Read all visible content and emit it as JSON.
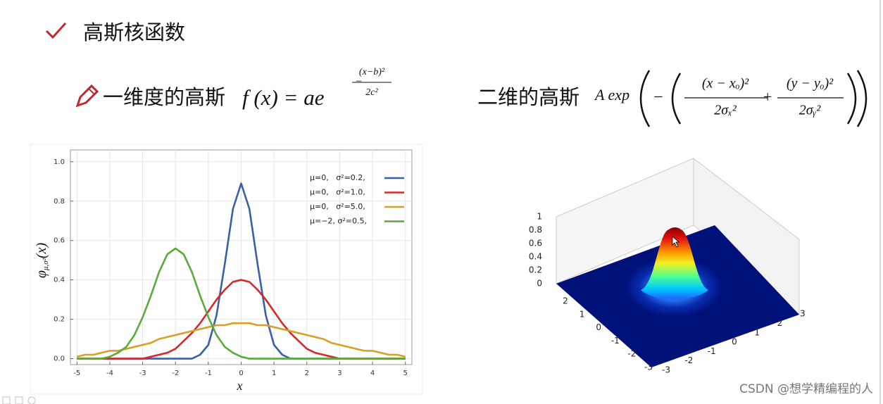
{
  "header": {
    "title": "高斯核函数"
  },
  "formula_1d": {
    "label": "一维度的高斯",
    "lhs": "f (x) = ae",
    "exp_sign": "−",
    "exp_num": "(x−b)²",
    "exp_den": "2c²"
  },
  "formula_2d": {
    "label": "二维的高斯",
    "lead": "A exp",
    "sign": "−",
    "num_1": "(x − xₒ)²",
    "den_1": "2σₓ²",
    "plus": "+",
    "num_2": "(y − yₒ)²",
    "den_2": "2σᵧ²"
  },
  "chart_data": {
    "type": "line",
    "xlabel": "x",
    "ylabel": {
      "symbol": "φ",
      "subscript": "μ,σ²",
      "argument": "(x)"
    },
    "x": [
      -5,
      -4.75,
      -4.5,
      -4.25,
      -4,
      -3.75,
      -3.5,
      -3.25,
      -3,
      -2.75,
      -2.5,
      -2.25,
      -2,
      -1.75,
      -1.5,
      -1.25,
      -1,
      -0.75,
      -0.5,
      -0.25,
      0,
      0.25,
      0.5,
      0.75,
      1,
      1.25,
      1.5,
      1.75,
      2,
      2.25,
      2.5,
      2.75,
      3,
      3.25,
      3.5,
      3.75,
      4,
      4.25,
      4.5,
      4.75,
      5
    ],
    "xlim": [
      -5.2,
      5.2
    ],
    "xticks": [
      -5,
      -4,
      -3,
      -2,
      -1,
      0,
      1,
      2,
      3,
      4,
      5
    ],
    "ylim": [
      -0.03,
      1.06
    ],
    "yticks": [
      {
        "value": 0,
        "label": "0.0"
      },
      0.2,
      0.4,
      0.6,
      0.8,
      {
        "value": 1,
        "label": "1.0"
      }
    ],
    "grid": true,
    "legend": "upper right",
    "series": [
      {
        "name": "μ=0,   σ²=0.2,",
        "color": "#3b5ea8",
        "values": [
          0,
          0,
          0,
          0,
          0,
          0,
          0,
          0,
          0,
          0,
          0,
          0,
          0,
          0,
          0,
          0.02,
          0.07,
          0.22,
          0.48,
          0.76,
          0.89,
          0.76,
          0.48,
          0.22,
          0.07,
          0.02,
          0,
          0,
          0,
          0,
          0,
          0,
          0,
          0,
          0,
          0,
          0,
          0,
          0,
          0,
          0
        ]
      },
      {
        "name": "μ=0,   σ²=1.0,",
        "color": "#d42a2a",
        "values": [
          0,
          0,
          0,
          0,
          0,
          0,
          0,
          0,
          0,
          0.01,
          0.02,
          0.03,
          0.05,
          0.09,
          0.13,
          0.18,
          0.24,
          0.3,
          0.35,
          0.39,
          0.4,
          0.39,
          0.35,
          0.3,
          0.24,
          0.18,
          0.13,
          0.09,
          0.05,
          0.03,
          0.02,
          0.01,
          0,
          0,
          0,
          0,
          0,
          0,
          0,
          0,
          0
        ]
      },
      {
        "name": "μ=0,   σ²=5.0,",
        "color": "#d9a028",
        "values": [
          0.01,
          0.02,
          0.02,
          0.03,
          0.04,
          0.04,
          0.05,
          0.06,
          0.07,
          0.08,
          0.1,
          0.11,
          0.12,
          0.13,
          0.14,
          0.15,
          0.16,
          0.17,
          0.17,
          0.18,
          0.18,
          0.18,
          0.17,
          0.17,
          0.16,
          0.15,
          0.14,
          0.13,
          0.12,
          0.11,
          0.1,
          0.08,
          0.07,
          0.06,
          0.05,
          0.04,
          0.04,
          0.03,
          0.02,
          0.02,
          0.01
        ]
      },
      {
        "name": "μ=−2, σ²=0.5,",
        "color": "#5aab3a",
        "values": [
          0,
          0,
          0,
          0,
          0.01,
          0.03,
          0.06,
          0.12,
          0.21,
          0.32,
          0.44,
          0.53,
          0.56,
          0.53,
          0.44,
          0.32,
          0.21,
          0.12,
          0.06,
          0.03,
          0.01,
          0,
          0,
          0,
          0,
          0,
          0,
          0,
          0,
          0,
          0,
          0,
          0,
          0,
          0,
          0,
          0,
          0,
          0,
          0,
          0
        ]
      }
    ]
  },
  "surface": {
    "zticks": [
      0,
      0.2,
      0.4,
      0.6,
      0.8,
      1
    ],
    "left_ticks": [
      2,
      1,
      0,
      -1,
      -2,
      -3
    ],
    "right_ticks": [
      -3,
      -2,
      -1,
      0,
      1,
      2,
      3
    ]
  },
  "footer": {
    "watermark": "CSDN @想学精编程的人"
  }
}
